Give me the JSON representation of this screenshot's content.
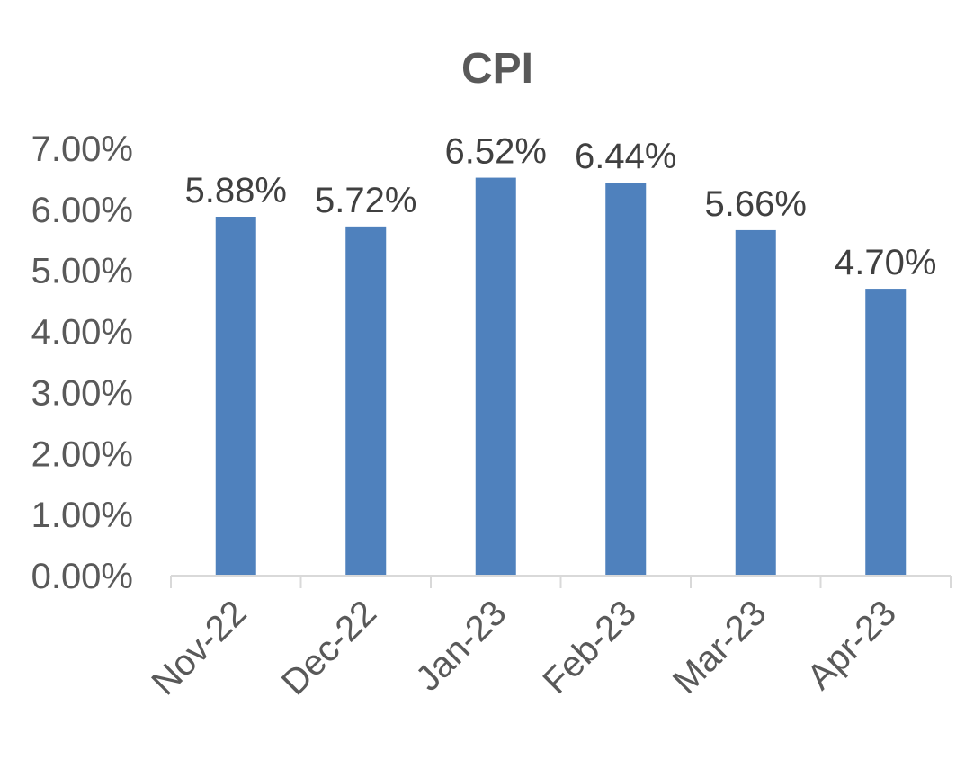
{
  "chart_data": {
    "type": "bar",
    "title": "CPI",
    "xlabel": "",
    "ylabel": "",
    "categories": [
      "Nov-22",
      "Dec-22",
      "Jan-23",
      "Feb-23",
      "Mar-23",
      "Apr-23"
    ],
    "values": [
      5.88,
      5.72,
      6.52,
      6.44,
      5.66,
      4.7
    ],
    "data_labels": [
      "5.88%",
      "5.72%",
      "6.52%",
      "6.44%",
      "5.66%",
      "4.70%"
    ],
    "ylim": [
      0,
      7
    ],
    "y_ticks": [
      0,
      1,
      2,
      3,
      4,
      5,
      6,
      7
    ],
    "y_tick_labels": [
      "0.00%",
      "1.00%",
      "2.00%",
      "3.00%",
      "4.00%",
      "5.00%",
      "6.00%",
      "7.00%"
    ],
    "grid": false,
    "legend": "none",
    "colors": {
      "bar": "#4f81bd",
      "axis": "#d9d9d9",
      "text": "#595959"
    }
  }
}
